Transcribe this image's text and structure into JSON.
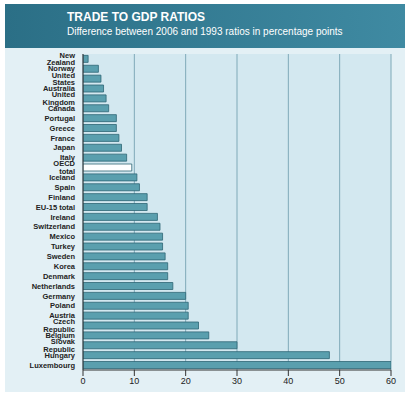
{
  "chart_data": {
    "type": "bar",
    "orientation": "horizontal",
    "title": "TRADE TO GDP RATIOS",
    "subtitle": "Difference between 2006 and 1993 ratios in percentage points",
    "categories": [
      "New Zealand",
      "Norway",
      "United States",
      "Australia",
      "United Kingdom",
      "Canada",
      "Portugal",
      "Greece",
      "France",
      "Japan",
      "Italy",
      "OECD total",
      "Iceland",
      "Spain",
      "Finland",
      "EU-15 total",
      "Ireland",
      "Switzerland",
      "Mexico",
      "Turkey",
      "Sweden",
      "Korea",
      "Denmark",
      "Netherlands",
      "Germany",
      "Poland",
      "Austria",
      "Czech Republic",
      "Belgium",
      "Slovak Republic",
      "Hungary",
      "Luxembourg"
    ],
    "values": [
      1,
      3,
      3.5,
      4,
      4.5,
      5,
      6.5,
      6.5,
      7,
      7.5,
      8.5,
      9.5,
      10.5,
      11,
      12.5,
      12.5,
      14.5,
      15,
      15.5,
      15.5,
      16,
      16.5,
      16.5,
      17.5,
      20,
      20.5,
      20.5,
      22.5,
      24.5,
      30,
      48,
      60
    ],
    "colors": [
      "#5a9fae",
      "#5a9fae",
      "#5a9fae",
      "#5a9fae",
      "#5a9fae",
      "#5a9fae",
      "#5a9fae",
      "#5a9fae",
      "#5a9fae",
      "#5a9fae",
      "#5a9fae",
      "#ffffff",
      "#5a9fae",
      "#5a9fae",
      "#5a9fae",
      "#5a9fae",
      "#5a9fae",
      "#5a9fae",
      "#5a9fae",
      "#5a9fae",
      "#5a9fae",
      "#5a9fae",
      "#5a9fae",
      "#5a9fae",
      "#5a9fae",
      "#5a9fae",
      "#5a9fae",
      "#5a9fae",
      "#5a9fae",
      "#5a9fae",
      "#5a9fae",
      "#5a9fae"
    ],
    "xlim": [
      0,
      60
    ],
    "xticks": [
      0,
      10,
      20,
      30,
      40,
      50,
      60
    ],
    "grid": true
  }
}
